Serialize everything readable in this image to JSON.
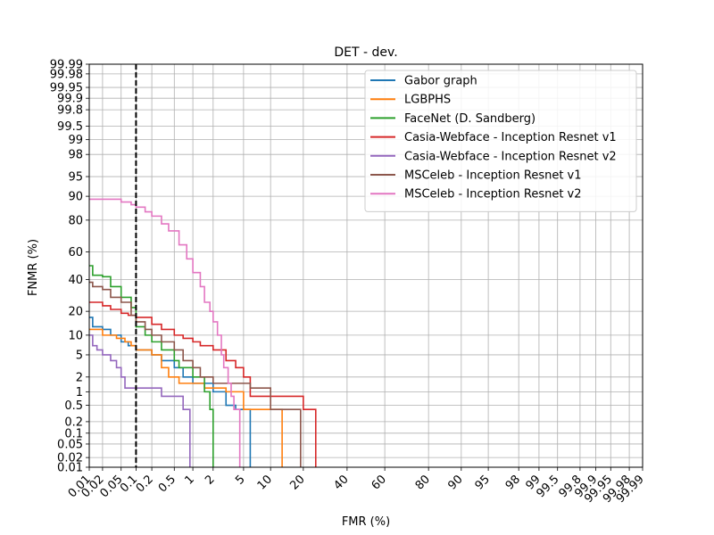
{
  "chart_data": {
    "type": "line",
    "title": "DET - dev.",
    "xlabel": "FMR (%)",
    "ylabel": "FNMR (%)",
    "scale": "normal-deviate (probit) on both axes",
    "xlim": [
      0.01,
      99.99
    ],
    "ylim": [
      0.01,
      99.99
    ],
    "x_ticks": [
      "0.01",
      "0.02",
      "0.05",
      "0.1",
      "0.2",
      "0.5",
      "1",
      "2",
      "5",
      "10",
      "20",
      "40",
      "60",
      "80",
      "90",
      "95",
      "98",
      "99",
      "99.5",
      "99.8",
      "99.9",
      "99.95",
      "99.98",
      "99.99"
    ],
    "y_ticks": [
      "0.01",
      "0.02",
      "0.05",
      "0.1",
      "0.2",
      "0.5",
      "1",
      "2",
      "5",
      "10",
      "20",
      "40",
      "60",
      "80",
      "90",
      "95",
      "98",
      "99",
      "99.5",
      "99.8",
      "99.9",
      "99.95",
      "99.98",
      "99.99"
    ],
    "grid": true,
    "legend_position": "top-right",
    "threshold_line": {
      "x": 0.1,
      "style": "dashed",
      "color": "#000000"
    },
    "series": [
      {
        "name": "Gabor graph",
        "color": "#1f77b4",
        "points": [
          [
            0.01,
            17
          ],
          [
            0.012,
            13
          ],
          [
            0.02,
            12
          ],
          [
            0.03,
            10
          ],
          [
            0.05,
            8
          ],
          [
            0.07,
            7
          ],
          [
            0.1,
            6
          ],
          [
            0.2,
            5
          ],
          [
            0.3,
            4
          ],
          [
            0.5,
            3
          ],
          [
            0.7,
            2
          ],
          [
            1,
            1.5
          ],
          [
            2,
            1
          ],
          [
            3,
            0.5
          ],
          [
            4,
            0.4
          ],
          [
            6,
            0.4
          ],
          [
            6,
            0.01
          ]
        ]
      },
      {
        "name": "LGBPHS",
        "color": "#ff7f0e",
        "points": [
          [
            0.01,
            12
          ],
          [
            0.02,
            10
          ],
          [
            0.04,
            9
          ],
          [
            0.06,
            8
          ],
          [
            0.08,
            7
          ],
          [
            0.1,
            6
          ],
          [
            0.2,
            5
          ],
          [
            0.3,
            3
          ],
          [
            0.4,
            2
          ],
          [
            0.6,
            1.5
          ],
          [
            1.5,
            1.2
          ],
          [
            3,
            1
          ],
          [
            5,
            0.4
          ],
          [
            13,
            0.4
          ],
          [
            13,
            0.01
          ]
        ]
      },
      {
        "name": "FaceNet (D. Sandberg)",
        "color": "#2ca02c",
        "points": [
          [
            0.01,
            50
          ],
          [
            0.012,
            43
          ],
          [
            0.02,
            42
          ],
          [
            0.03,
            35
          ],
          [
            0.05,
            28
          ],
          [
            0.08,
            22
          ],
          [
            0.1,
            13
          ],
          [
            0.15,
            10
          ],
          [
            0.2,
            8
          ],
          [
            0.3,
            6
          ],
          [
            0.5,
            4
          ],
          [
            0.6,
            3
          ],
          [
            1,
            2
          ],
          [
            1.5,
            1
          ],
          [
            1.8,
            0.4
          ],
          [
            2,
            0.4
          ],
          [
            2,
            0.01
          ]
        ]
      },
      {
        "name": "Casia-Webface - Inception Resnet v1",
        "color": "#d62728",
        "points": [
          [
            0.01,
            25
          ],
          [
            0.02,
            23
          ],
          [
            0.03,
            21
          ],
          [
            0.05,
            19
          ],
          [
            0.07,
            18
          ],
          [
            0.1,
            17
          ],
          [
            0.15,
            17
          ],
          [
            0.2,
            14
          ],
          [
            0.3,
            12
          ],
          [
            0.5,
            10
          ],
          [
            0.7,
            9
          ],
          [
            1,
            8
          ],
          [
            1.3,
            7
          ],
          [
            2,
            6
          ],
          [
            3,
            4
          ],
          [
            4,
            3
          ],
          [
            5,
            2
          ],
          [
            6,
            0.8
          ],
          [
            20,
            0.8
          ],
          [
            20,
            0.4
          ],
          [
            25,
            0.4
          ],
          [
            25,
            0.01
          ]
        ]
      },
      {
        "name": "Casia-Webface - Inception Resnet v2",
        "color": "#9467bd",
        "points": [
          [
            0.01,
            10
          ],
          [
            0.012,
            7
          ],
          [
            0.015,
            6
          ],
          [
            0.02,
            5
          ],
          [
            0.03,
            4
          ],
          [
            0.04,
            3
          ],
          [
            0.05,
            2
          ],
          [
            0.06,
            1.2
          ],
          [
            0.2,
            1.2
          ],
          [
            0.3,
            0.8
          ],
          [
            0.6,
            0.8
          ],
          [
            0.7,
            0.4
          ],
          [
            0.9,
            0.4
          ],
          [
            0.9,
            0.01
          ]
        ]
      },
      {
        "name": "MSCeleb - Inception Resnet v1",
        "color": "#8c564b",
        "points": [
          [
            0.01,
            38
          ],
          [
            0.012,
            35
          ],
          [
            0.02,
            33
          ],
          [
            0.03,
            28
          ],
          [
            0.05,
            25
          ],
          [
            0.08,
            18
          ],
          [
            0.1,
            15
          ],
          [
            0.15,
            12
          ],
          [
            0.2,
            10
          ],
          [
            0.3,
            8
          ],
          [
            0.5,
            6
          ],
          [
            0.7,
            4
          ],
          [
            1,
            3
          ],
          [
            1.3,
            2
          ],
          [
            2,
            1.5
          ],
          [
            6,
            1.5
          ],
          [
            6,
            1.2
          ],
          [
            10,
            1.2
          ],
          [
            10,
            0.4
          ],
          [
            19,
            0.4
          ],
          [
            19,
            0.01
          ]
        ]
      },
      {
        "name": "MSCeleb - Inception Resnet v2",
        "color": "#e377c2",
        "points": [
          [
            0.01,
            89
          ],
          [
            0.03,
            89
          ],
          [
            0.05,
            88
          ],
          [
            0.08,
            87
          ],
          [
            0.1,
            86
          ],
          [
            0.15,
            84
          ],
          [
            0.2,
            82
          ],
          [
            0.3,
            78
          ],
          [
            0.4,
            74
          ],
          [
            0.6,
            65
          ],
          [
            0.8,
            55
          ],
          [
            1,
            45
          ],
          [
            1.3,
            35
          ],
          [
            1.5,
            25
          ],
          [
            1.8,
            20
          ],
          [
            2,
            15
          ],
          [
            2.3,
            10
          ],
          [
            2.6,
            5
          ],
          [
            2.8,
            3
          ],
          [
            3.2,
            1.5
          ],
          [
            3.5,
            0.8
          ],
          [
            3.8,
            0.4
          ],
          [
            4.5,
            0.4
          ],
          [
            4.5,
            0.01
          ]
        ]
      }
    ]
  }
}
